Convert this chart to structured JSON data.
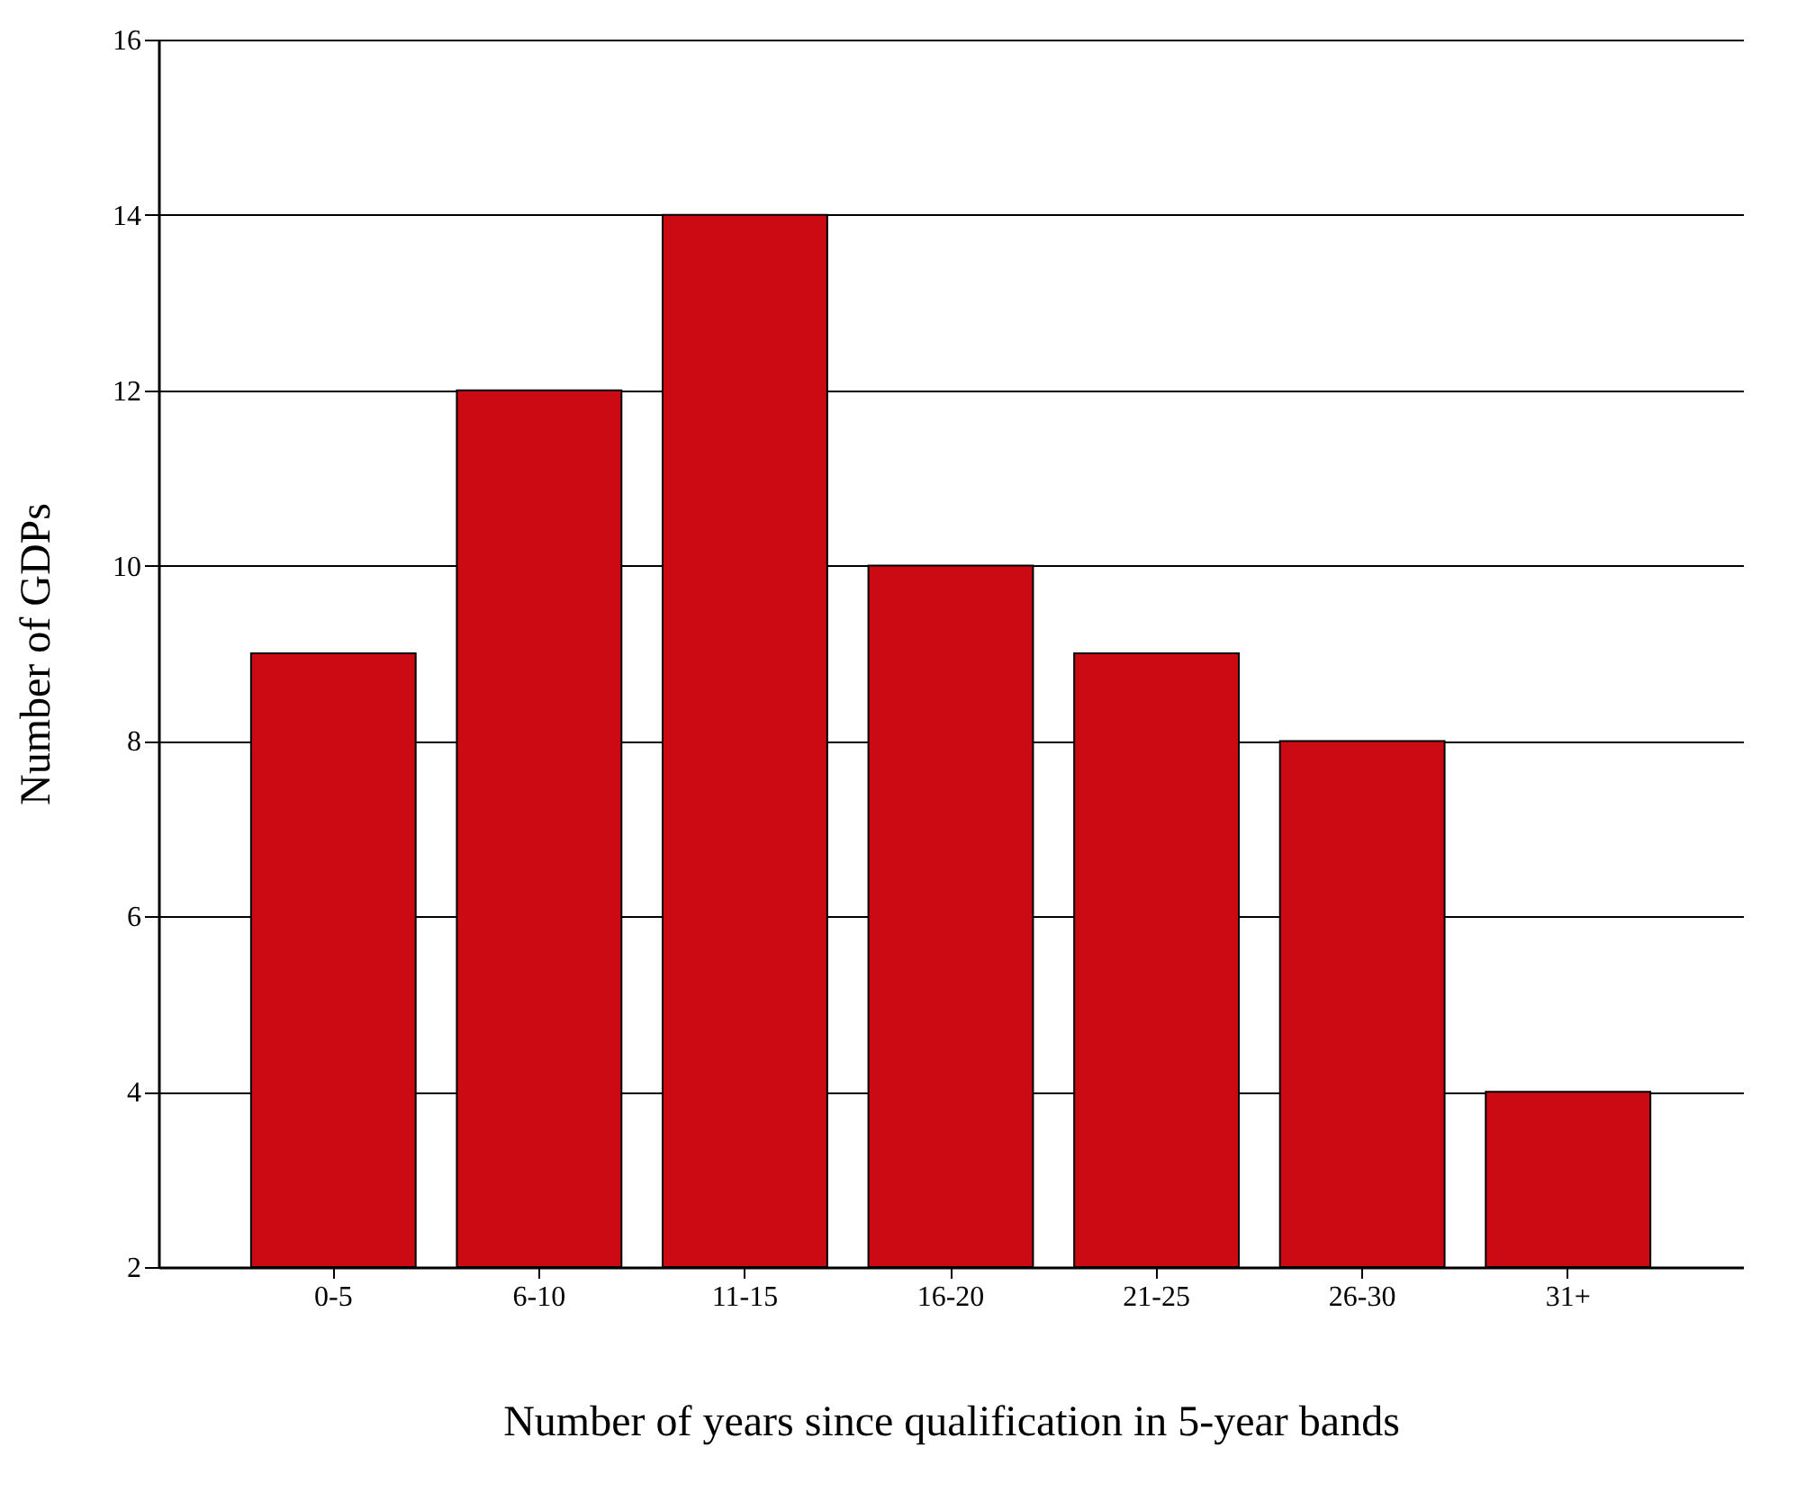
{
  "chart_data": {
    "type": "bar",
    "xlabel": "Number of years since qualification in 5-year bands",
    "ylabel": "Number of GDPs",
    "categories": [
      "0-5",
      "6-10",
      "11-15",
      "16-20",
      "21-25",
      "26-30",
      "31+"
    ],
    "values": [
      9,
      12,
      14,
      10,
      9,
      8,
      4
    ],
    "color": "#cc0a14",
    "ylim": [
      2,
      16
    ],
    "yticks": [
      2,
      4,
      6,
      8,
      10,
      12,
      14,
      16
    ],
    "grid": "y"
  }
}
